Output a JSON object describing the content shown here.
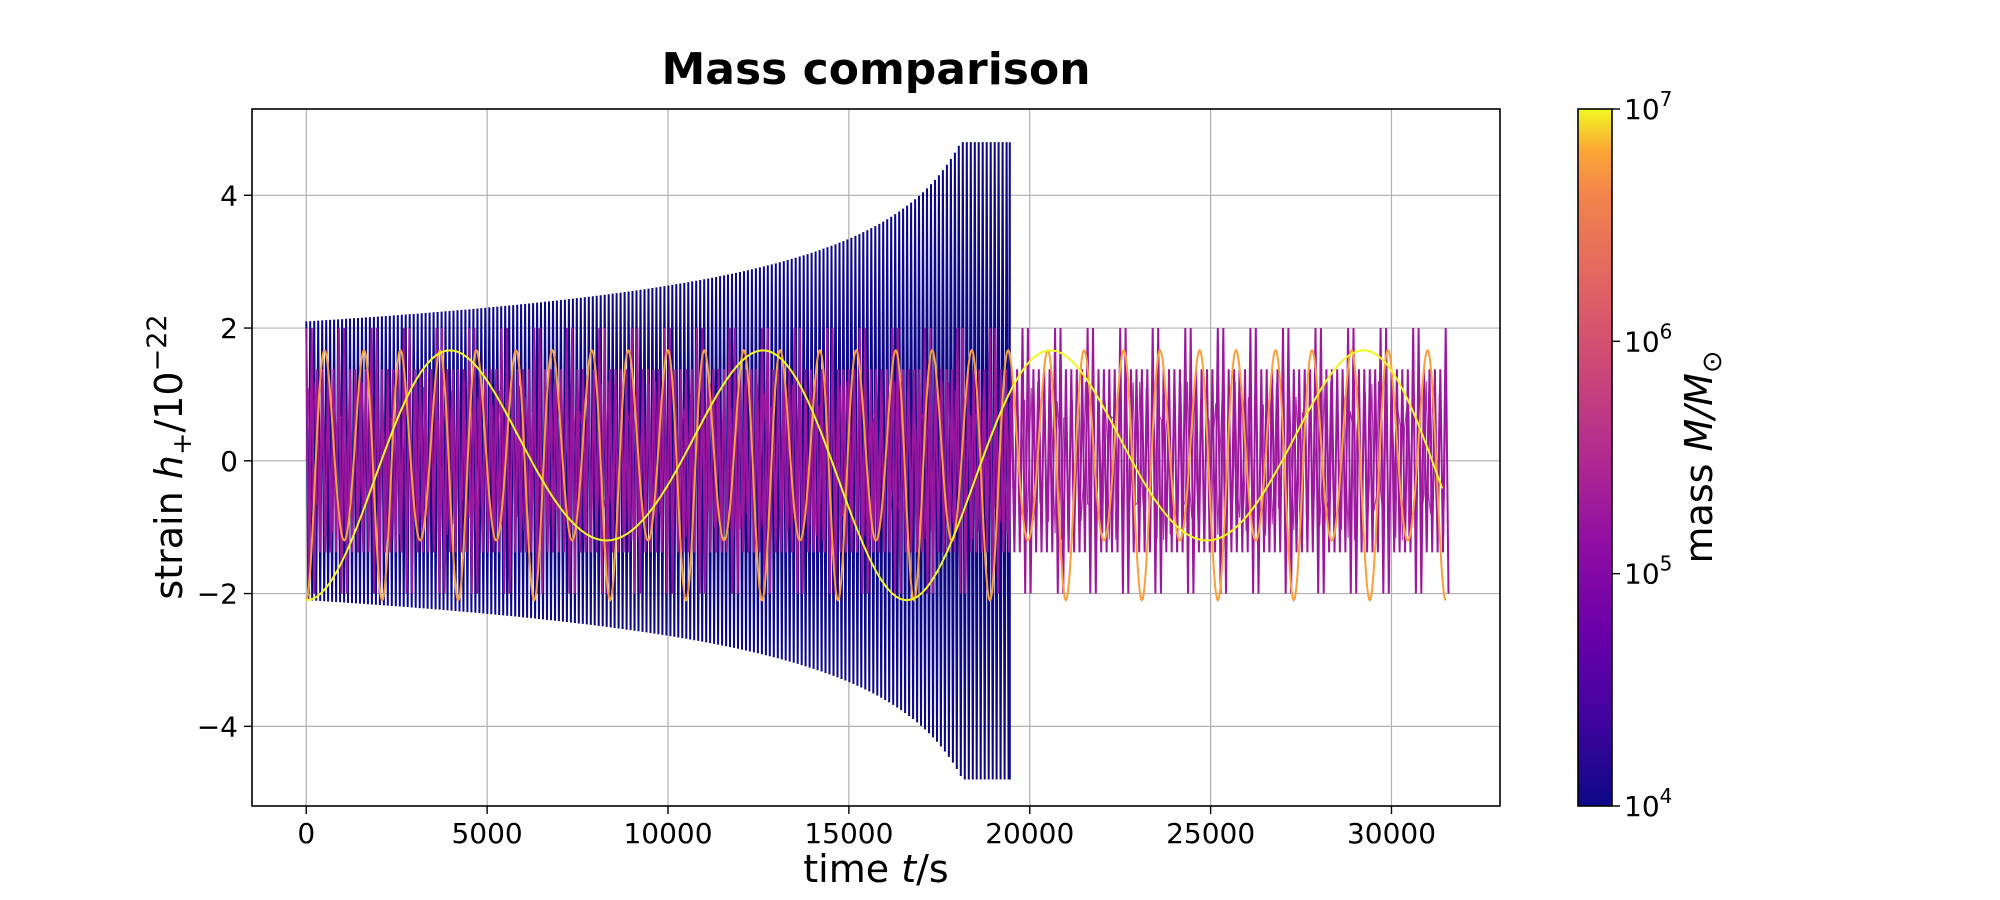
{
  "chart_data": {
    "type": "line",
    "title": "Mass comparison",
    "xlabel": {
      "prefix": "time ",
      "var": "t",
      "suffix": "/s"
    },
    "ylabel": {
      "prefix": "strain ",
      "var": "h",
      "sub": "+",
      "mid": "/10",
      "sup": "−22"
    },
    "xlim": [
      -1500,
      33000
    ],
    "ylim": [
      -5.2,
      5.3
    ],
    "xticks": [
      0,
      5000,
      10000,
      15000,
      20000,
      25000,
      30000
    ],
    "xtick_labels": [
      "0",
      "5000",
      "10000",
      "15000",
      "20000",
      "25000",
      "30000"
    ],
    "yticks": [
      -4,
      -2,
      0,
      2,
      4
    ],
    "ytick_labels": [
      "−4",
      "−2",
      "0",
      "2",
      "4"
    ],
    "grid": true,
    "colorbar": {
      "label": {
        "prefix": "mass ",
        "var": "M/M",
        "sub": "⊙"
      },
      "scale": "log",
      "range": [
        10000,
        10000000
      ],
      "ticks": [
        {
          "base": "10",
          "exp": "4",
          "value": 10000
        },
        {
          "base": "10",
          "exp": "5",
          "value": 100000
        },
        {
          "base": "10",
          "exp": "6",
          "value": 1000000
        },
        {
          "base": "10",
          "exp": "7",
          "value": 10000000
        }
      ],
      "colormap": "plasma"
    },
    "series": [
      {
        "mass": 10000,
        "color": "#0d0887",
        "t_end": 19450,
        "amp_start": 2.1,
        "amp_end": 4.8,
        "period": 220,
        "style": "dense"
      },
      {
        "mass": 100000,
        "color": "#9c179e",
        "t_end": 31500,
        "amp": 2.0,
        "inner_amp": 1.2,
        "period": 300,
        "style": "band"
      },
      {
        "mass": 1000000,
        "color": "#fb9f3a",
        "t_end": 31500,
        "amp_range": [
          1.2,
          2.1
        ],
        "period": 1050,
        "style": "wave"
      },
      {
        "mass": 10000000,
        "color": "#f0f921",
        "t_end": 31500,
        "amp_range": [
          1.2,
          2.1
        ],
        "period": 8300,
        "style": "wave"
      }
    ]
  }
}
